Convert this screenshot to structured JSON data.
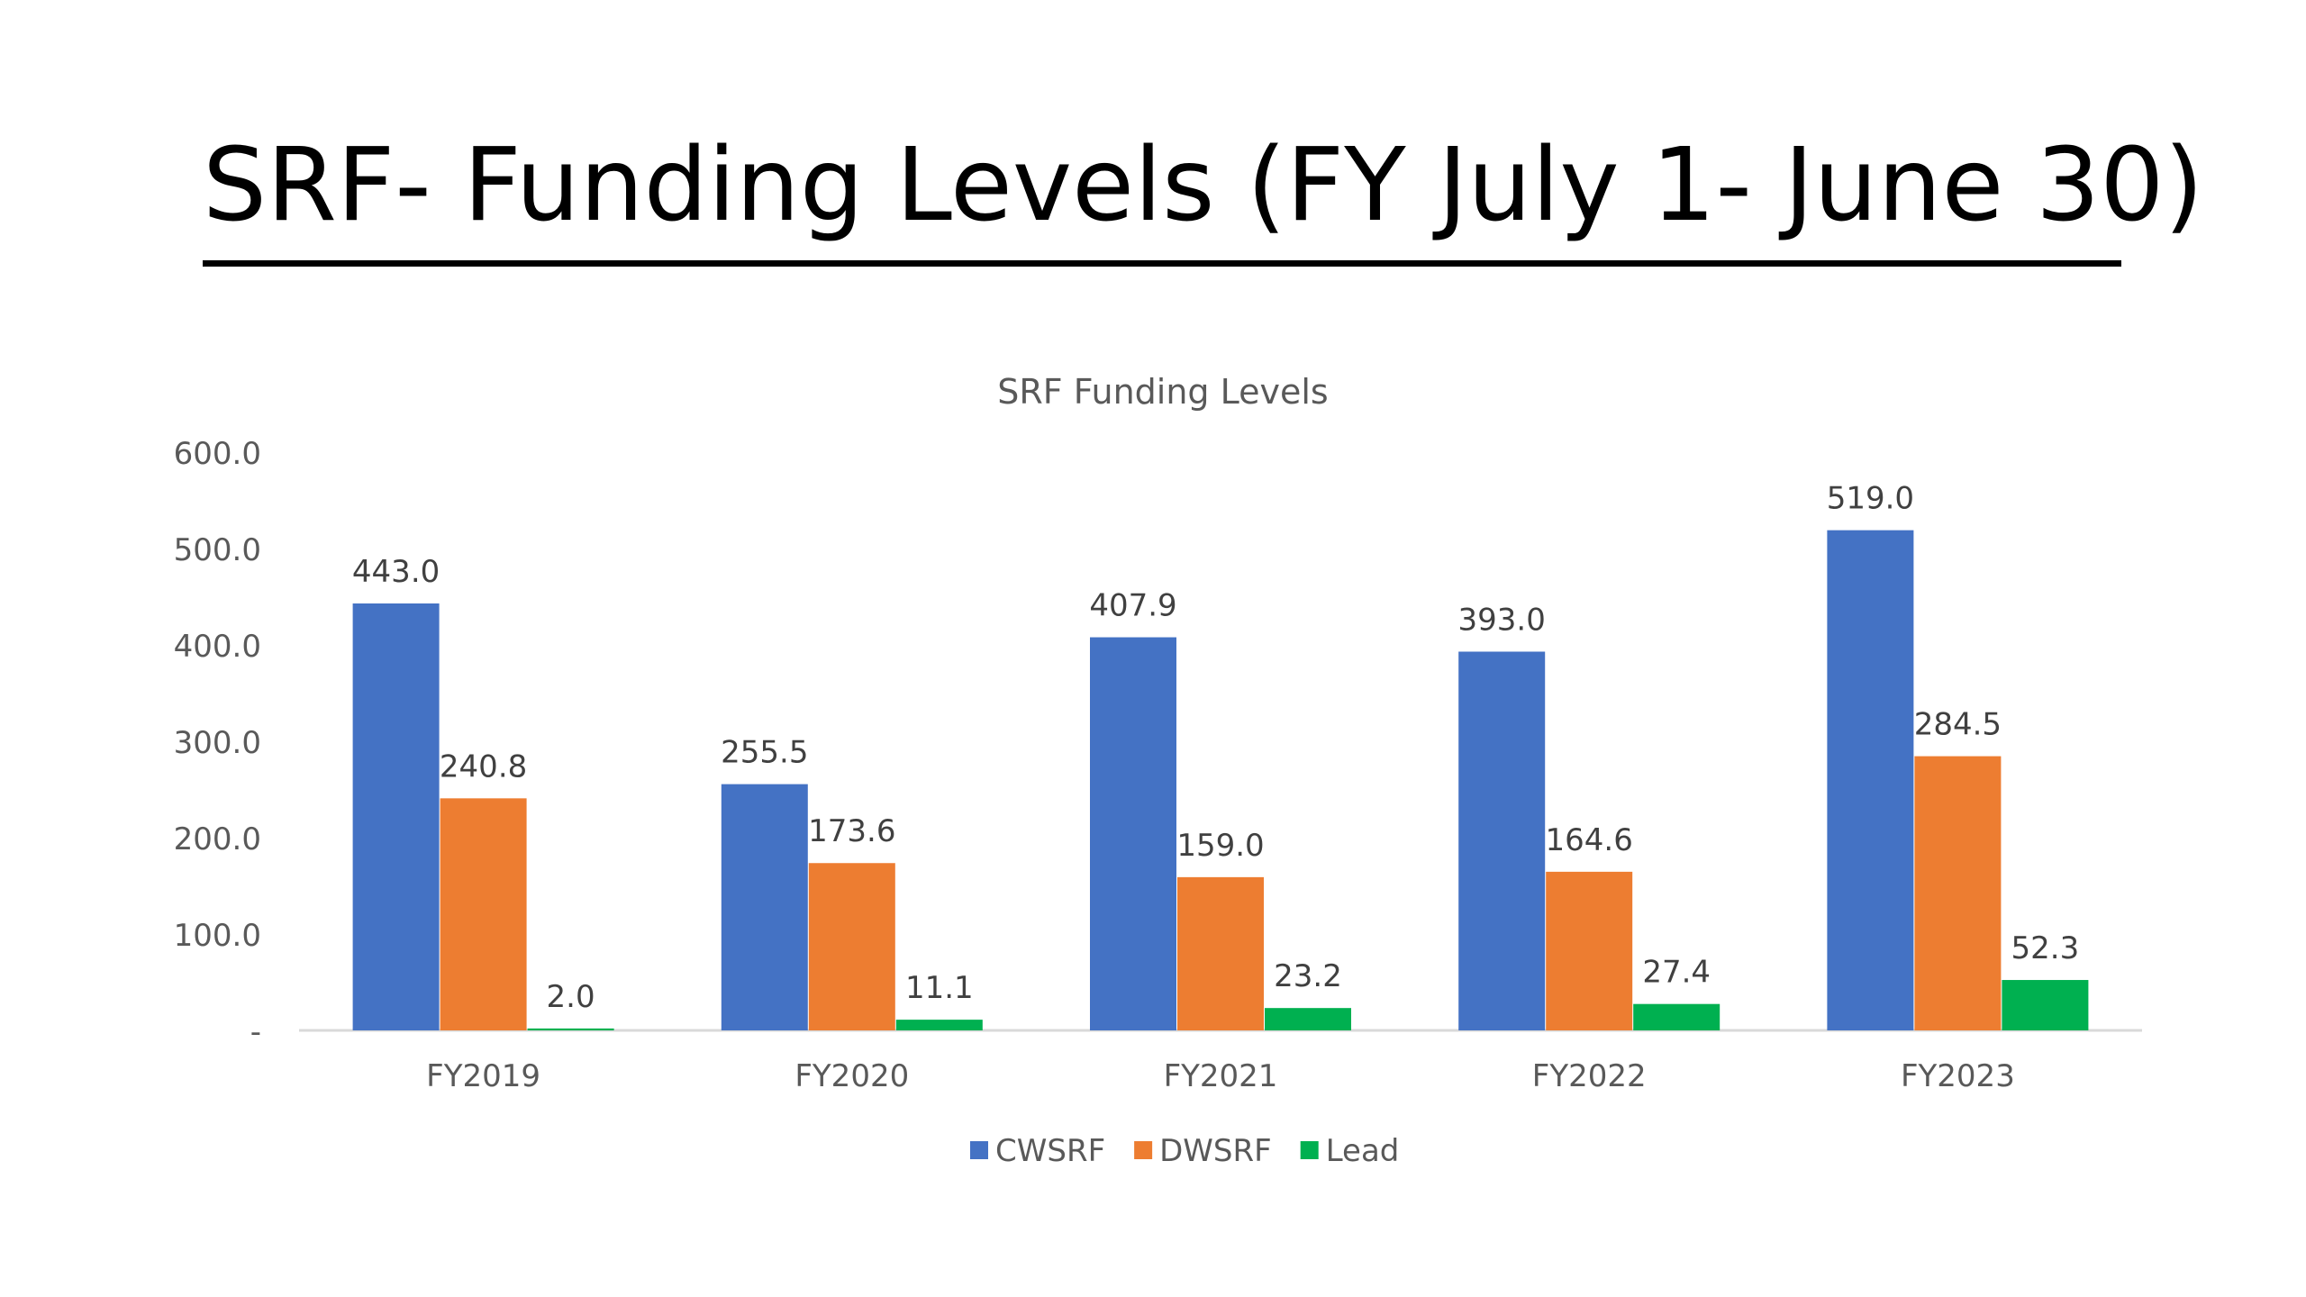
{
  "slide": {
    "title": "SRF- Funding Levels (FY July 1- June 30)"
  },
  "chart_data": {
    "type": "bar",
    "title": "SRF Funding Levels",
    "xlabel": "",
    "ylabel": "",
    "categories": [
      "FY2019",
      "FY2020",
      "FY2021",
      "FY2022",
      "FY2023"
    ],
    "series": [
      {
        "name": "CWSRF",
        "color": "#4472C4",
        "values": [
          443.0,
          255.5,
          407.9,
          393.0,
          519.0
        ]
      },
      {
        "name": "DWSRF",
        "color": "#ED7D31",
        "values": [
          240.8,
          173.6,
          159.0,
          164.6,
          284.5
        ]
      },
      {
        "name": "Lead",
        "color": "#00B050",
        "values": [
          2.0,
          11.1,
          23.2,
          27.4,
          52.3
        ]
      }
    ],
    "ylim": [
      0,
      600
    ],
    "yticks": [
      0,
      100,
      200,
      300,
      400,
      500,
      600
    ],
    "ytick_labels": [
      "-",
      "100.0",
      "200.0",
      "300.0",
      "400.0",
      "500.0",
      "600.0"
    ],
    "data_labels": true,
    "grid": false,
    "legend_position": "bottom"
  }
}
